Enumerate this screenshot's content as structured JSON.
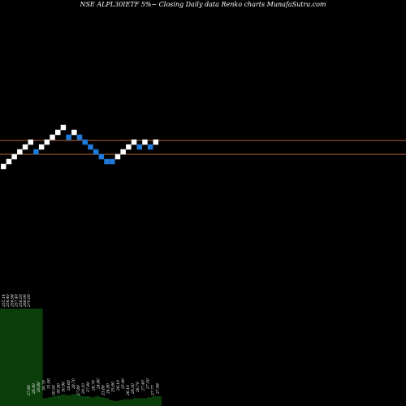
{
  "chart_data": {
    "type": "renko",
    "title_parts": [
      "NSE ALPL30IETF 5%~",
      "Closing",
      "Daily",
      "data",
      "Renko",
      "charts",
      "MunafaSutra.com"
    ],
    "colors": {
      "background": "#000000",
      "up_brick": "#ffffff",
      "down_brick": "#1e7bdc",
      "level_line": "#b4643c",
      "volume": "#0b3d0b"
    },
    "level_lines": [
      173,
      190
    ],
    "price_range": [
      130,
      205
    ],
    "bricks": [
      {
        "dir": "up",
        "price": 205
      },
      {
        "dir": "up",
        "price": 199
      },
      {
        "dir": "up",
        "price": 193
      },
      {
        "dir": "up",
        "price": 187
      },
      {
        "dir": "up",
        "price": 181
      },
      {
        "dir": "up",
        "price": 175
      },
      {
        "dir": "down",
        "price": 187
      },
      {
        "dir": "up",
        "price": 181
      },
      {
        "dir": "up",
        "price": 175
      },
      {
        "dir": "up",
        "price": 169
      },
      {
        "dir": "up",
        "price": 163
      },
      {
        "dir": "up",
        "price": 157
      },
      {
        "dir": "down",
        "price": 169
      },
      {
        "dir": "up",
        "price": 163
      },
      {
        "dir": "down",
        "price": 169
      },
      {
        "dir": "down",
        "price": 175
      },
      {
        "dir": "down",
        "price": 181
      },
      {
        "dir": "down",
        "price": 187
      },
      {
        "dir": "down",
        "price": 193
      },
      {
        "dir": "down",
        "price": 199
      },
      {
        "dir": "down",
        "price": 199
      },
      {
        "dir": "up",
        "price": 193
      },
      {
        "dir": "up",
        "price": 187
      },
      {
        "dir": "up",
        "price": 181
      },
      {
        "dir": "up",
        "price": 175
      },
      {
        "dir": "down",
        "price": 181
      },
      {
        "dir": "up",
        "price": 175
      },
      {
        "dir": "down",
        "price": 181
      },
      {
        "dir": "up",
        "price": 175
      }
    ],
    "volume_labels": [
      "255.14",
      "256.40",
      "256.98",
      "257.40",
      "258.50",
      "268.90",
      "270.00"
    ],
    "volume_labels_small": [
      "27.80",
      "28.90",
      "29.80",
      "30.70",
      "31.00",
      "30.50",
      "30.90",
      "30.90",
      "28.60",
      "28.70",
      "27.80",
      "29.10",
      "27.80",
      "26.70",
      "24.80",
      "23.80",
      "24.80",
      "25.60",
      "26.10",
      "25.90",
      "26.10",
      "26.30",
      "26.70",
      "27.40",
      "27.50",
      "27.77",
      "27.98"
    ],
    "volumes": [
      100,
      100,
      100,
      100,
      100,
      100,
      100,
      100,
      100,
      8,
      9,
      10,
      11,
      12,
      11,
      12,
      12,
      10,
      10,
      9,
      10,
      9,
      8,
      6,
      5,
      6,
      7,
      7,
      8,
      8,
      8,
      9,
      10,
      10
    ]
  }
}
